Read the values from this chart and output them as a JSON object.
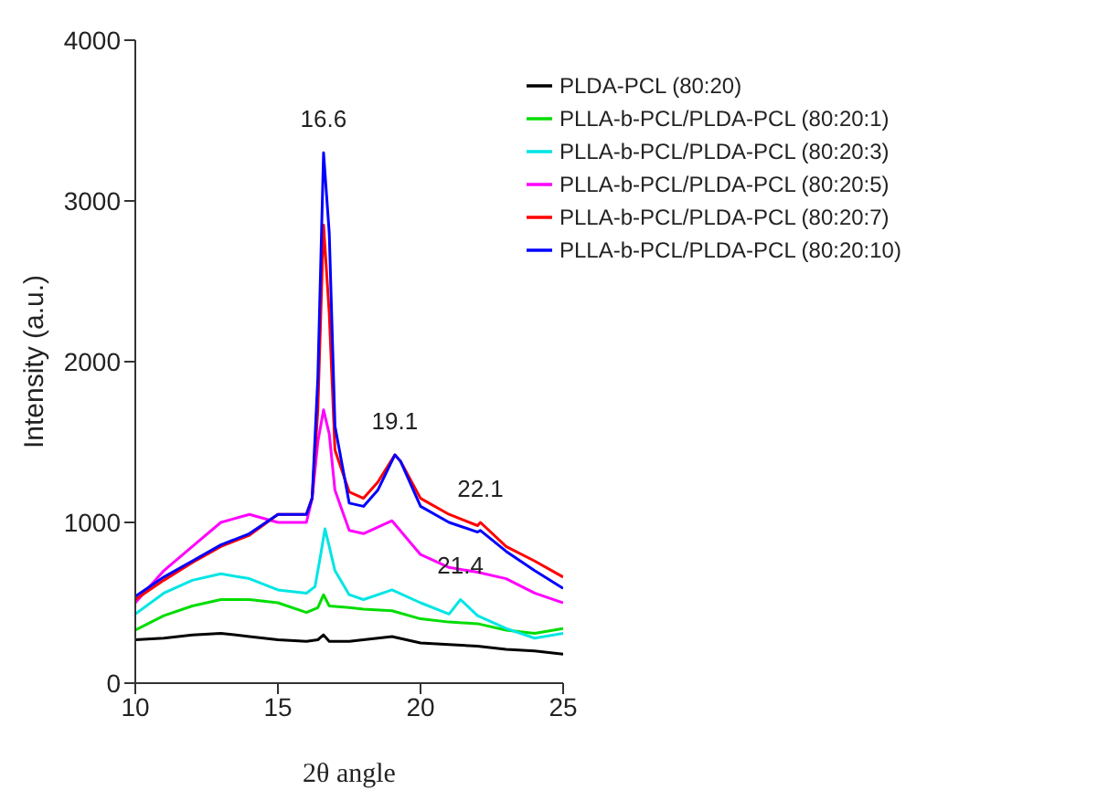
{
  "chart_data": {
    "type": "line",
    "xlabel": "2θ angle",
    "ylabel": "Intensity (a.u.)",
    "xlim": [
      10,
      25
    ],
    "xticks": [
      10,
      15,
      20,
      25
    ],
    "ylim": [
      0,
      4000
    ],
    "yticks": [
      0,
      1000,
      2000,
      3000,
      4000
    ],
    "grid": false,
    "legend": "top right",
    "marker": "none",
    "series": [
      {
        "name": "PLDA-PCL (80:20)",
        "color": "#000000",
        "x": [
          10,
          11,
          12,
          13,
          14,
          15,
          16,
          16.4,
          16.6,
          16.8,
          17.5,
          18,
          19,
          20,
          21,
          22,
          23,
          24,
          25
        ],
        "values": [
          270,
          280,
          300,
          310,
          290,
          270,
          260,
          270,
          300,
          260,
          260,
          270,
          290,
          250,
          240,
          230,
          210,
          200,
          180
        ]
      },
      {
        "name": "PLLA-b-PCL/PLDA-PCL (80:20:1)",
        "color": "#00dd00",
        "x": [
          10,
          11,
          12,
          13,
          14,
          15,
          16,
          16.4,
          16.6,
          16.8,
          17.5,
          18,
          19,
          20,
          21,
          22,
          23,
          24,
          25
        ],
        "values": [
          330,
          420,
          480,
          520,
          520,
          500,
          440,
          470,
          550,
          480,
          470,
          460,
          450,
          400,
          380,
          370,
          330,
          310,
          340
        ]
      },
      {
        "name": "PLLA-b-PCL/PLDA-PCL (80:20:3)",
        "color": "#00e5e5",
        "x": [
          10,
          11,
          12,
          13,
          14,
          15,
          16,
          16.3,
          16.5,
          16.65,
          16.8,
          17,
          17.5,
          18,
          19,
          20,
          21,
          21.4,
          22,
          23,
          24,
          25
        ],
        "values": [
          430,
          560,
          640,
          680,
          650,
          580,
          560,
          600,
          800,
          960,
          850,
          700,
          550,
          520,
          580,
          500,
          430,
          520,
          420,
          340,
          280,
          310
        ]
      },
      {
        "name": "PLLA-b-PCL/PLDA-PCL (80:20:5)",
        "color": "#ff00ff",
        "x": [
          10,
          11,
          12,
          13,
          14,
          15,
          16,
          16.2,
          16.4,
          16.6,
          16.8,
          17,
          17.5,
          18,
          19,
          20,
          21,
          22,
          23,
          24,
          25
        ],
        "values": [
          500,
          700,
          850,
          1000,
          1050,
          1000,
          1000,
          1150,
          1500,
          1700,
          1550,
          1200,
          950,
          930,
          1010,
          800,
          720,
          690,
          650,
          560,
          500
        ]
      },
      {
        "name": "PLLA-b-PCL/PLDA-PCL (80:20:7)",
        "color": "#ff0000",
        "x": [
          10,
          11,
          12,
          13,
          14,
          15,
          16,
          16.2,
          16.4,
          16.6,
          16.8,
          17,
          17.5,
          18,
          18.5,
          19.1,
          19.3,
          20,
          21,
          22,
          22.1,
          23,
          24,
          25
        ],
        "values": [
          520,
          640,
          750,
          850,
          920,
          1050,
          1050,
          1150,
          1700,
          2850,
          2300,
          1450,
          1190,
          1150,
          1250,
          1420,
          1380,
          1150,
          1050,
          980,
          1000,
          850,
          760,
          660
        ]
      },
      {
        "name": "PLLA-b-PCL/PLDA-PCL (80:20:10)",
        "color": "#0000ff",
        "x": [
          10,
          11,
          12,
          13,
          14,
          15,
          16,
          16.2,
          16.4,
          16.6,
          16.8,
          17,
          17.5,
          18,
          18.5,
          19.1,
          19.3,
          20,
          21,
          22,
          22.1,
          23,
          24,
          25
        ],
        "values": [
          540,
          660,
          760,
          860,
          930,
          1050,
          1050,
          1150,
          1900,
          3300,
          2800,
          1600,
          1120,
          1100,
          1200,
          1420,
          1380,
          1100,
          1000,
          940,
          950,
          820,
          700,
          590
        ]
      }
    ],
    "annotations": [
      {
        "text": "16.6",
        "x": 16.6,
        "y": 3300
      },
      {
        "text": "19.1",
        "x": 19.1,
        "y": 1420
      },
      {
        "text": "22.1",
        "x": 22.1,
        "y": 1000
      },
      {
        "text": "21.4",
        "x": 21.4,
        "y": 520
      }
    ]
  }
}
